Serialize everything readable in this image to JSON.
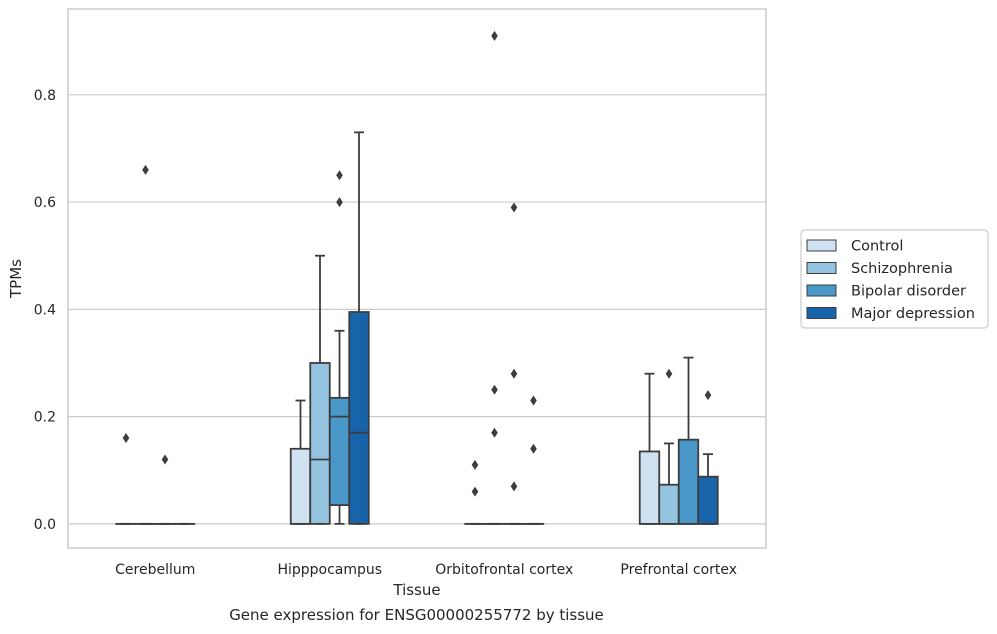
{
  "caption": "Gene expression for ENSG00000255772 by tissue",
  "chart_data": {
    "type": "box",
    "xlabel": "Tissue",
    "ylabel": "TPMs",
    "ylim": [
      -0.045,
      0.96
    ],
    "yticks": [
      0.0,
      0.2,
      0.4,
      0.6,
      0.8
    ],
    "ytick_labels": [
      "0.0",
      "0.2",
      "0.4",
      "0.6",
      "0.8"
    ],
    "grid": "horizontal",
    "legend_position": "right, outside plot",
    "categories": [
      "Cerebellum",
      "Hipppocampus",
      "Orbitofrontal cortex",
      "Prefrontal cortex"
    ],
    "series": [
      {
        "name": "Control",
        "color": "#d0e1f2",
        "boxes": [
          {
            "q1": 0.0,
            "median": 0.0,
            "q3": 0.0,
            "whisker_low": 0.0,
            "whisker_high": 0.0,
            "outliers": [
              0.16
            ]
          },
          {
            "q1": 0.0,
            "median": 0.0,
            "q3": 0.14,
            "whisker_low": 0.0,
            "whisker_high": 0.23,
            "outliers": []
          },
          {
            "q1": 0.0,
            "median": 0.0,
            "q3": 0.0,
            "whisker_low": 0.0,
            "whisker_high": 0.0,
            "outliers": [
              0.06,
              0.11
            ]
          },
          {
            "q1": 0.0,
            "median": 0.0,
            "q3": 0.135,
            "whisker_low": 0.0,
            "whisker_high": 0.28,
            "outliers": []
          }
        ]
      },
      {
        "name": "Schizophrenia",
        "color": "#94c4df",
        "boxes": [
          {
            "q1": 0.0,
            "median": 0.0,
            "q3": 0.0,
            "whisker_low": 0.0,
            "whisker_high": 0.0,
            "outliers": [
              0.66
            ]
          },
          {
            "q1": 0.0,
            "median": 0.12,
            "q3": 0.3,
            "whisker_low": 0.0,
            "whisker_high": 0.5,
            "outliers": []
          },
          {
            "q1": 0.0,
            "median": 0.0,
            "q3": 0.0,
            "whisker_low": 0.0,
            "whisker_high": 0.0,
            "outliers": [
              0.17,
              0.25,
              0.91
            ]
          },
          {
            "q1": 0.0,
            "median": 0.0,
            "q3": 0.073,
            "whisker_low": 0.0,
            "whisker_high": 0.15,
            "outliers": [
              0.28
            ]
          }
        ]
      },
      {
        "name": "Bipolar disorder",
        "color": "#4a98c9",
        "boxes": [
          {
            "q1": 0.0,
            "median": 0.0,
            "q3": 0.0,
            "whisker_low": 0.0,
            "whisker_high": 0.0,
            "outliers": [
              0.12
            ]
          },
          {
            "q1": 0.035,
            "median": 0.2,
            "q3": 0.235,
            "whisker_low": 0.0,
            "whisker_high": 0.36,
            "outliers": [
              0.6,
              0.65
            ]
          },
          {
            "q1": 0.0,
            "median": 0.0,
            "q3": 0.0,
            "whisker_low": 0.0,
            "whisker_high": 0.0,
            "outliers": [
              0.07,
              0.28,
              0.59
            ]
          },
          {
            "q1": 0.0,
            "median": 0.0,
            "q3": 0.157,
            "whisker_low": 0.0,
            "whisker_high": 0.31,
            "outliers": []
          }
        ]
      },
      {
        "name": "Major depression",
        "color": "#1764ab",
        "boxes": [
          {
            "q1": 0.0,
            "median": 0.0,
            "q3": 0.0,
            "whisker_low": 0.0,
            "whisker_high": 0.0,
            "outliers": []
          },
          {
            "q1": 0.0,
            "median": 0.17,
            "q3": 0.395,
            "whisker_low": 0.0,
            "whisker_high": 0.73,
            "outliers": []
          },
          {
            "q1": 0.0,
            "median": 0.0,
            "q3": 0.0,
            "whisker_low": 0.0,
            "whisker_high": 0.0,
            "outliers": [
              0.14,
              0.23
            ]
          },
          {
            "q1": 0.0,
            "median": 0.0,
            "q3": 0.088,
            "whisker_low": 0.0,
            "whisker_high": 0.13,
            "outliers": [
              0.24
            ]
          }
        ]
      }
    ]
  }
}
